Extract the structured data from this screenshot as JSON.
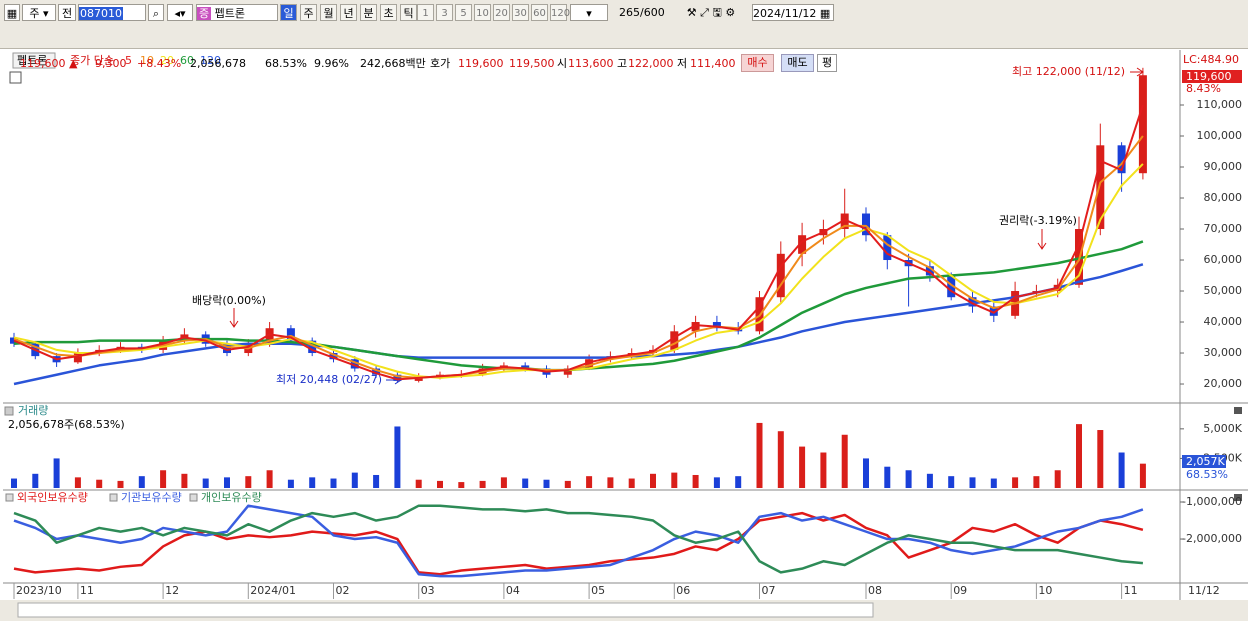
{
  "toolbar": {
    "mode": "주",
    "prev": "전",
    "code": "087010",
    "name_badge": "증",
    "name": "펩트론",
    "periods": [
      "일",
      "주",
      "월",
      "년",
      "분",
      "초",
      "틱"
    ],
    "ticks": [
      "1",
      "3",
      "5",
      "10",
      "20",
      "30",
      "60",
      "120"
    ],
    "count": "265",
    "max": "/600",
    "date": "2024/11/12"
  },
  "quote": {
    "price": "119,600 ▲",
    "change": "9,300",
    "pct": "+8.43%",
    "volume": "2,056,678",
    "turnover": "68.53%",
    "ratio": "9.96%",
    "amount": "242,668백만",
    "bid_label": "호가",
    "bid": "119,600",
    "ask": "119,500",
    "open_label": "시",
    "open": "113,600",
    "high_label": "고",
    "high": "122,000",
    "low_label": "저",
    "low": "111,400",
    "buy": "매수",
    "sell": "매도",
    "flat": "평"
  },
  "chart_data": [
    {
      "type": "candlestick",
      "name": "펩트론",
      "legend_label": "종가 단순",
      "lc_label": "LC:484.90",
      "last_label": "119,600",
      "last_pct": "8.43%",
      "annotations": {
        "dividend": "배당락(0.00%)",
        "low": "최저 20,448 (02/27)",
        "rights": "권리락(-3.19%)",
        "high": "최고 122,000 (11/12)"
      },
      "up_color": "#d91f1a",
      "down_color": "#1a3fd8",
      "open": [
        35000,
        33000,
        29000,
        27000,
        30000,
        31000,
        32000,
        31000,
        34000,
        36000,
        33000,
        30000,
        33000,
        38000,
        34000,
        30000,
        28000,
        25000,
        23000,
        21000,
        22000,
        23000,
        23000,
        25000,
        26000,
        25000,
        23000,
        25000,
        28000,
        29000,
        30000,
        31000,
        37000,
        40000,
        38000,
        37000,
        48000,
        62000,
        68000,
        70000,
        75000,
        68000,
        60000,
        58000,
        55000,
        48000,
        45000,
        42000,
        50000,
        50000,
        52000,
        70000,
        97000,
        88000
      ],
      "high": [
        36500,
        33500,
        30000,
        31500,
        32500,
        33500,
        33000,
        35500,
        38000,
        37000,
        34000,
        34500,
        40000,
        39000,
        35000,
        31000,
        29000,
        26000,
        24000,
        23500,
        24000,
        24500,
        26500,
        27000,
        27000,
        26000,
        26000,
        29500,
        30500,
        31500,
        32500,
        39000,
        42000,
        42000,
        40000,
        50000,
        66000,
        72000,
        73000,
        83000,
        77000,
        69000,
        62000,
        60000,
        56000,
        50000,
        47000,
        53000,
        52000,
        54000,
        74000,
        104000,
        98000,
        122000
      ],
      "low": [
        32000,
        28000,
        25500,
        26500,
        29000,
        30000,
        30000,
        30000,
        33000,
        32000,
        29000,
        29000,
        32000,
        33000,
        29000,
        27000,
        24000,
        22000,
        20448,
        20500,
        21500,
        22000,
        22500,
        24000,
        24000,
        22000,
        22000,
        24500,
        27000,
        28000,
        29000,
        30000,
        35000,
        37000,
        36000,
        36000,
        46000,
        58000,
        65000,
        67000,
        66000,
        57000,
        45000,
        53000,
        47000,
        43000,
        40000,
        41000,
        48000,
        48000,
        51000,
        68000,
        82000,
        86000
      ],
      "close": [
        33000,
        29000,
        27000,
        30000,
        31000,
        32000,
        31000,
        34000,
        36000,
        33000,
        30000,
        33000,
        38000,
        34000,
        30000,
        28000,
        25000,
        23000,
        21000,
        22000,
        23000,
        23000,
        25000,
        26000,
        25000,
        23000,
        25000,
        28000,
        29000,
        30000,
        31000,
        37000,
        40000,
        38000,
        37000,
        48000,
        62000,
        68000,
        70000,
        75000,
        68000,
        60000,
        58000,
        55000,
        48000,
        45000,
        42000,
        50000,
        50000,
        52000,
        70000,
        97000,
        88000,
        119600
      ],
      "series": [
        {
          "name": "5",
          "color": "#e21d1d",
          "values": [
            34000,
            31000,
            28000,
            29000,
            30500,
            31500,
            31500,
            33000,
            35000,
            34000,
            31000,
            32000,
            36000,
            35000,
            31000,
            28500,
            26000,
            23500,
            21500,
            22000,
            22500,
            23000,
            24500,
            25500,
            25000,
            24000,
            24500,
            27000,
            28500,
            29500,
            30500,
            35000,
            39000,
            38500,
            37500,
            45000,
            58000,
            66000,
            69000,
            73000,
            70000,
            62000,
            59000,
            56000,
            50000,
            46000,
            43000,
            48000,
            49500,
            51000,
            65000,
            92000,
            89000,
            110000
          ]
        },
        {
          "name": "10",
          "color": "#f08a1a",
          "values": [
            34500,
            32000,
            29500,
            29000,
            30000,
            31000,
            31500,
            32500,
            34000,
            34500,
            32000,
            31500,
            34000,
            35500,
            32500,
            29500,
            27000,
            24500,
            22500,
            22000,
            22500,
            23000,
            24000,
            25000,
            25000,
            24500,
            24500,
            26000,
            28000,
            29000,
            30000,
            33000,
            37000,
            38500,
            38000,
            42000,
            52000,
            62000,
            67000,
            71000,
            71000,
            65000,
            61000,
            57500,
            52000,
            47500,
            44500,
            46000,
            48500,
            50500,
            60000,
            85000,
            91000,
            100000
          ]
        },
        {
          "name": "20",
          "color": "#f2e21c",
          "values": [
            35000,
            33500,
            31000,
            30000,
            30000,
            30500,
            31000,
            32000,
            33000,
            34000,
            33000,
            32000,
            33000,
            34500,
            33500,
            31000,
            28500,
            26000,
            24000,
            22500,
            22000,
            22500,
            23000,
            24000,
            24500,
            24500,
            24500,
            25000,
            26500,
            28000,
            29000,
            31000,
            34000,
            36500,
            37500,
            40000,
            46000,
            54000,
            61000,
            67000,
            70000,
            68000,
            63000,
            60000,
            55000,
            50000,
            46500,
            46000,
            47500,
            49000,
            55000,
            73000,
            84000,
            91000
          ]
        },
        {
          "name": "60",
          "color": "#1f9a3a",
          "values": [
            33000,
            33500,
            33500,
            33500,
            34000,
            34000,
            34000,
            34000,
            34500,
            34500,
            34500,
            34000,
            34000,
            33500,
            33000,
            32000,
            31000,
            30000,
            29000,
            28000,
            27000,
            26000,
            25500,
            25000,
            25000,
            24500,
            24500,
            25000,
            25500,
            26000,
            26500,
            27500,
            29000,
            30500,
            32000,
            35000,
            39000,
            43000,
            46000,
            49000,
            51000,
            52500,
            54000,
            54500,
            55000,
            55500,
            56000,
            57000,
            58000,
            59000,
            60500,
            62000,
            63500,
            66000
          ]
        },
        {
          "name": "120",
          "color": "#2a54d8",
          "values": [
            20000,
            21500,
            23000,
            24500,
            26000,
            27000,
            28000,
            29500,
            30500,
            31500,
            32500,
            33000,
            33000,
            33000,
            32500,
            32000,
            31000,
            30000,
            29000,
            28500,
            28500,
            28500,
            28500,
            28500,
            28500,
            28500,
            28500,
            28500,
            28500,
            29000,
            29000,
            29500,
            30000,
            31000,
            32000,
            33500,
            35000,
            37000,
            38500,
            40000,
            41000,
            42000,
            43000,
            44000,
            45000,
            46000,
            47000,
            48000,
            49500,
            51000,
            53000,
            54500,
            56500,
            58600
          ]
        }
      ],
      "ylim": [
        14200,
        127100
      ],
      "yticks": [
        {
          "value": 20000,
          "label": "20,000"
        },
        {
          "value": 30000,
          "label": "30,000"
        },
        {
          "value": 40000,
          "label": "40,000"
        },
        {
          "value": 50000,
          "label": "50,000"
        },
        {
          "value": 60000,
          "label": "60,000"
        },
        {
          "value": 70000,
          "label": "70,000"
        },
        {
          "value": 80000,
          "label": "80,000"
        },
        {
          "value": 90000,
          "label": "90,000"
        },
        {
          "value": 100000,
          "label": "100,000"
        },
        {
          "value": 110000,
          "label": "110,000"
        }
      ]
    },
    {
      "type": "bar",
      "title": "거래량",
      "subtitle": "2,056,678주(68.53%)",
      "current_label": "2,057K",
      "current_pct": "68.53%",
      "values": [
        800000,
        1200000,
        2500000,
        900000,
        700000,
        600000,
        1000000,
        1500000,
        1200000,
        800000,
        900000,
        1000000,
        1500000,
        700000,
        900000,
        800000,
        1300000,
        1100000,
        5200000,
        700000,
        600000,
        500000,
        600000,
        900000,
        800000,
        700000,
        600000,
        1000000,
        900000,
        800000,
        1200000,
        1300000,
        1100000,
        900000,
        1000000,
        5500000,
        4800000,
        3500000,
        3000000,
        4500000,
        2500000,
        1800000,
        1500000,
        1200000,
        1000000,
        900000,
        800000,
        900000,
        1000000,
        1500000,
        5400000,
        4900000,
        3000000,
        2056678
      ],
      "ylim": [
        0,
        7100000
      ],
      "yticks": [
        {
          "value": 2500000,
          "label": "2,500K"
        },
        {
          "value": 5000000,
          "label": "5,000K"
        }
      ]
    },
    {
      "type": "line",
      "end_label": "11/12",
      "categories": [
        "2023/10",
        null,
        null,
        "11",
        null,
        null,
        null,
        "12",
        null,
        null,
        null,
        "2024/01",
        null,
        null,
        null,
        "02",
        null,
        null,
        null,
        "03",
        null,
        null,
        null,
        "04",
        null,
        null,
        null,
        "05",
        null,
        null,
        null,
        "06",
        null,
        null,
        null,
        "07",
        null,
        null,
        null,
        null,
        "08",
        null,
        null,
        null,
        "09",
        null,
        null,
        null,
        "10",
        null,
        null,
        null,
        "11",
        null
      ],
      "series": [
        {
          "name": "외국인보유수량",
          "color": "#e01a1a",
          "values": [
            -2800000,
            -2900000,
            -2850000,
            -2800000,
            -2850000,
            -2750000,
            -2700000,
            -2200000,
            -1900000,
            -1800000,
            -2000000,
            -1900000,
            -1950000,
            -1900000,
            -1800000,
            -1850000,
            -1900000,
            -1800000,
            -2000000,
            -2900000,
            -2950000,
            -2850000,
            -2800000,
            -2750000,
            -2700000,
            -2800000,
            -2750000,
            -2700000,
            -2600000,
            -2550000,
            -2500000,
            -2400000,
            -2200000,
            -2300000,
            -2000000,
            -1500000,
            -1400000,
            -1300000,
            -1500000,
            -1350000,
            -1700000,
            -1900000,
            -2500000,
            -2300000,
            -2100000,
            -1700000,
            -1800000,
            -1600000,
            -1900000,
            -2100000,
            -1700000,
            -1500000,
            -1600000,
            -1750000
          ]
        },
        {
          "name": "기관보유수량",
          "color": "#3a5ee0",
          "values": [
            -1500000,
            -1700000,
            -2000000,
            -1900000,
            -2000000,
            -2100000,
            -2000000,
            -1700000,
            -1800000,
            -1900000,
            -1800000,
            -1100000,
            -1200000,
            -1300000,
            -1400000,
            -1900000,
            -2000000,
            -1950000,
            -2100000,
            -2950000,
            -3000000,
            -3000000,
            -2950000,
            -2900000,
            -2850000,
            -2850000,
            -2800000,
            -2750000,
            -2700000,
            -2500000,
            -2300000,
            -2000000,
            -1800000,
            -1900000,
            -2100000,
            -1400000,
            -1300000,
            -1500000,
            -1400000,
            -1600000,
            -1800000,
            -2000000,
            -2000000,
            -2100000,
            -2300000,
            -2400000,
            -2300000,
            -2200000,
            -2000000,
            -1800000,
            -1700000,
            -1500000,
            -1400000,
            -1200000
          ]
        },
        {
          "name": "개인보유수량",
          "color": "#2e8b57",
          "values": [
            -1300000,
            -1500000,
            -2100000,
            -1900000,
            -1700000,
            -1800000,
            -1700000,
            -1900000,
            -1700000,
            -1800000,
            -1900000,
            -1600000,
            -1800000,
            -1500000,
            -1300000,
            -1400000,
            -1300000,
            -1500000,
            -1400000,
            -1100000,
            -1100000,
            -1150000,
            -1200000,
            -1200000,
            -1250000,
            -1200000,
            -1300000,
            -1300000,
            -1350000,
            -1400000,
            -1500000,
            -1900000,
            -2100000,
            -2000000,
            -1800000,
            -2600000,
            -2900000,
            -2800000,
            -2600000,
            -2700000,
            -2400000,
            -2100000,
            -1900000,
            -2000000,
            -2100000,
            -2100000,
            -2200000,
            -2300000,
            -2300000,
            -2300000,
            -2400000,
            -2500000,
            -2600000,
            -2650000
          ]
        }
      ],
      "ylim": [
        -3160000,
        -730000
      ],
      "yticks": [
        {
          "value": -2000000,
          "label": "-2,000,000"
        },
        {
          "value": -1000000,
          "label": "-1,000,000"
        }
      ]
    }
  ]
}
